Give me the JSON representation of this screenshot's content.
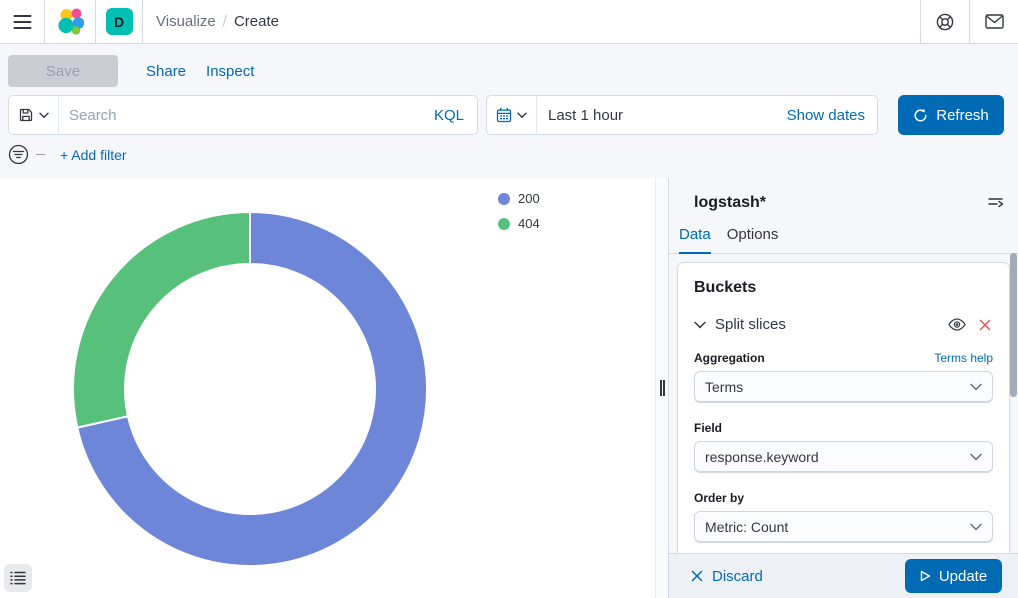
{
  "header": {
    "breadcrumbs": [
      {
        "label": "Visualize"
      },
      {
        "label": "Create"
      }
    ],
    "breadcrumb_separator": "/",
    "space_badge": "D",
    "icons": {
      "menu": "hamburger-icon",
      "logo": "elastic-logo",
      "help": "help-icon",
      "newsfeed": "mail-icon"
    }
  },
  "toolbar": {
    "save_label": "Save",
    "share_label": "Share",
    "inspect_label": "Inspect"
  },
  "query_bar": {
    "saved_query_icon": "save-icon",
    "search_placeholder": "Search",
    "search_value": "",
    "language_label": "KQL",
    "date_picker_icon": "calendar-icon",
    "time_range_value": "Last 1 hour",
    "show_dates_label": "Show dates",
    "refresh_label": "Refresh",
    "refresh_icon": "refresh-icon"
  },
  "filter_bar": {
    "filter_icon": "filter-circle-icon",
    "add_filter_label": "+ Add filter"
  },
  "chart_data": {
    "type": "pie",
    "donut": true,
    "legend_position": "right",
    "series_field": "response.keyword",
    "slices": [
      {
        "label": "200",
        "percent": 71.5,
        "color": "#6E86D8"
      },
      {
        "label": "404",
        "percent": 28.5,
        "color": "#57C17B"
      }
    ]
  },
  "side_panel": {
    "index_pattern": "logstash*",
    "collapse_icon": "collapse-panel-icon",
    "tabs": [
      {
        "label": "Data"
      },
      {
        "label": "Options"
      }
    ],
    "buckets": {
      "title": "Buckets",
      "split_slices_label": "Split slices",
      "eye_icon": "eye-icon",
      "remove_icon": "remove-x-icon",
      "aggregation_label": "Aggregation",
      "terms_help_label": "Terms help",
      "aggregation_value": "Terms",
      "field_label": "Field",
      "field_value": "response.keyword",
      "order_by_label": "Order by",
      "order_by_value": "Metric: Count"
    },
    "footer": {
      "discard_label": "Discard",
      "update_label": "Update"
    }
  },
  "colors": {
    "primary": "#006BB4",
    "danger_red": "#E35850",
    "badge_teal": "#00BFB3",
    "slice_200": "#6E86D8",
    "slice_404": "#57C17B",
    "border": "#D3DAE6",
    "text_dark": "#343741",
    "text_subdued": "#69707D",
    "footer_bg": "#EDF1F6"
  }
}
